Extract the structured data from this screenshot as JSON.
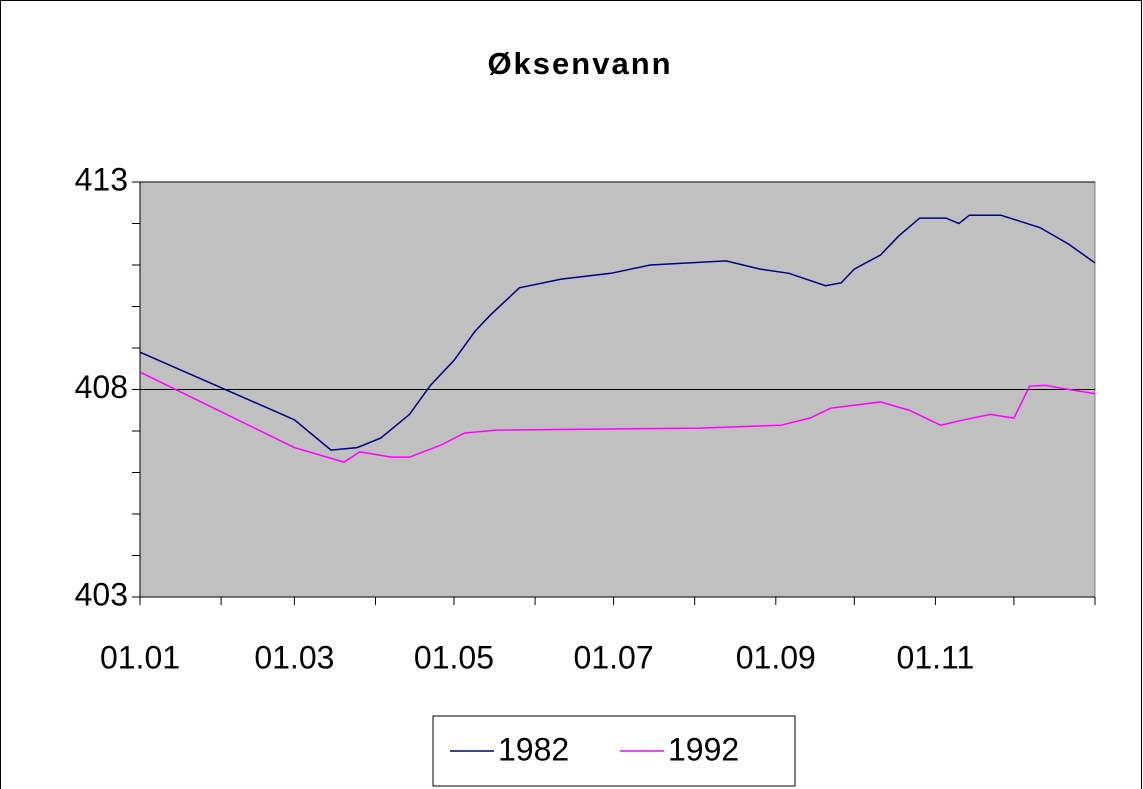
{
  "chart_data": {
    "type": "line",
    "title": "Øksenvann",
    "x": [
      0,
      59,
      73,
      83,
      92,
      103,
      111,
      120,
      128,
      134,
      145,
      161,
      180,
      195,
      224,
      237,
      248,
      262,
      268,
      273,
      283,
      290,
      298,
      308,
      313,
      317,
      329,
      344,
      355,
      365
    ],
    "series": [
      {
        "name": "1982",
        "color": "#000080",
        "values": [
          408.9,
          407.27,
          406.54,
          406.6,
          406.83,
          407.4,
          408.1,
          408.7,
          409.4,
          409.8,
          410.45,
          410.66,
          410.8,
          411.0,
          411.1,
          410.9,
          410.8,
          410.5,
          410.57,
          410.9,
          411.24,
          411.7,
          412.13,
          412.13,
          412.0,
          412.2,
          412.2,
          411.9,
          411.5,
          411.05
        ]
      },
      {
        "name": "1992",
        "color": "#ff00ff",
        "x": [
          0,
          59,
          78,
          84,
          96,
          103,
          115,
          124,
          136,
          214,
          245,
          256,
          264,
          283,
          294,
          306,
          315,
          325,
          334,
          340,
          346,
          355,
          365
        ],
        "values": [
          408.42,
          406.6,
          406.25,
          406.5,
          406.37,
          406.37,
          406.66,
          406.95,
          407.02,
          407.07,
          407.14,
          407.31,
          407.55,
          407.7,
          407.5,
          407.14,
          407.27,
          407.4,
          407.31,
          408.08,
          408.1,
          408.0,
          407.9
        ]
      }
    ],
    "xlim": [
      0,
      365
    ],
    "xticks": [
      {
        "value": 0,
        "label": "01.01"
      },
      {
        "value": 59,
        "label": "01.03"
      },
      {
        "value": 120,
        "label": "01.05"
      },
      {
        "value": 181,
        "label": "01.07"
      },
      {
        "value": 243,
        "label": "01.09"
      },
      {
        "value": 304,
        "label": "01.11"
      }
    ],
    "xminorticks": [
      31,
      90,
      151,
      212,
      273,
      334,
      365
    ],
    "ylim": [
      403,
      413
    ],
    "yticks": [
      403,
      408,
      413
    ],
    "yminorticks": [
      404,
      405,
      406,
      407,
      409,
      410,
      411,
      412
    ],
    "grid": true,
    "legend": "bottom"
  }
}
